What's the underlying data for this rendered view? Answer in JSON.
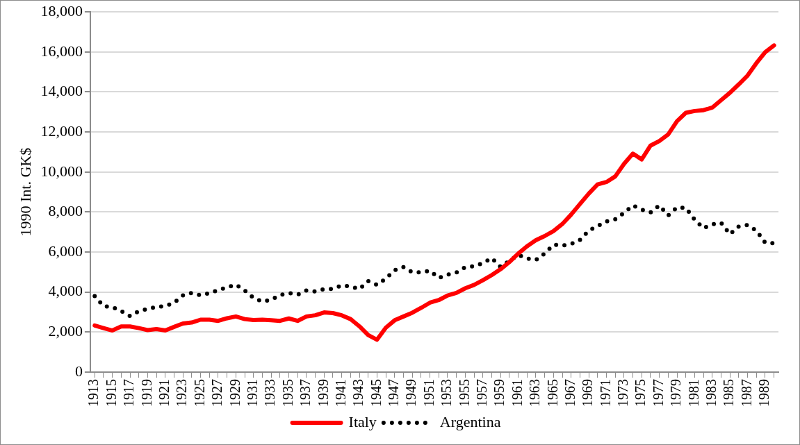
{
  "chart_data": {
    "type": "line",
    "ylabel": "1990 Int. GK$",
    "categories": [
      "1913",
      null,
      "1915",
      null,
      "1917",
      null,
      "1919",
      null,
      "1921",
      null,
      "1923",
      null,
      "1925",
      null,
      "1927",
      null,
      "1929",
      null,
      "1931",
      null,
      "1933",
      null,
      "1935",
      null,
      "1937",
      null,
      "1939",
      null,
      "1941",
      null,
      "1943",
      null,
      "1945",
      null,
      "1947",
      null,
      "1949",
      null,
      "1951",
      null,
      "1953",
      null,
      "1955",
      null,
      "1957",
      null,
      "1959",
      null,
      "1961",
      null,
      "1963",
      null,
      "1965",
      null,
      "1967",
      null,
      "1969",
      null,
      "1971",
      null,
      "1973",
      null,
      "1975",
      null,
      "1977",
      null,
      "1979",
      null,
      "1981",
      null,
      "1983",
      null,
      "1985",
      null,
      "1987",
      null,
      "1989",
      null
    ],
    "series": [
      {
        "name": "Italy",
        "color": "#ff0000",
        "line_style": "solid",
        "values": [
          2330,
          2200,
          2080,
          2280,
          2280,
          2200,
          2100,
          2150,
          2080,
          2260,
          2430,
          2480,
          2620,
          2620,
          2560,
          2690,
          2780,
          2650,
          2600,
          2620,
          2590,
          2560,
          2680,
          2560,
          2780,
          2840,
          2980,
          2950,
          2840,
          2650,
          2290,
          1850,
          1620,
          2220,
          2590,
          2780,
          2970,
          3210,
          3470,
          3600,
          3830,
          3960,
          4190,
          4360,
          4590,
          4850,
          5140,
          5500,
          5920,
          6290,
          6590,
          6800,
          7050,
          7400,
          7870,
          8400,
          8920,
          9380,
          9500,
          9780,
          10410,
          10920,
          10630,
          11320,
          11550,
          11880,
          12540,
          12960,
          13050,
          13090,
          13220,
          13590,
          13960,
          14380,
          14820,
          15440,
          15990,
          16330
        ]
      },
      {
        "name": "Argentina",
        "color": "#000000",
        "line_style": "dotted",
        "values": [
          3800,
          3300,
          3250,
          3050,
          2800,
          3050,
          3150,
          3260,
          3300,
          3470,
          3830,
          3960,
          3840,
          3950,
          4100,
          4240,
          4370,
          4080,
          3710,
          3520,
          3620,
          3850,
          3950,
          3870,
          4080,
          4030,
          4150,
          4160,
          4330,
          4280,
          4150,
          4550,
          4360,
          4670,
          5090,
          5250,
          4990,
          4990,
          5070,
          4710,
          4870,
          4980,
          5240,
          5290,
          5450,
          5700,
          5260,
          5560,
          5860,
          5680,
          5600,
          5930,
          6370,
          6320,
          6400,
          6610,
          7070,
          7300,
          7530,
          7640,
          7960,
          8330,
          8120,
          7980,
          8330,
          7830,
          8230,
          8210,
          7620,
          7190,
          7390,
          7460,
          6890,
          7280,
          7350,
          7070,
          6470,
          6440
        ]
      }
    ],
    "ylim": [
      0,
      18000
    ],
    "yticks": [
      {
        "value": 0,
        "label": "0"
      },
      {
        "value": 2000,
        "label": "2,000"
      },
      {
        "value": 4000,
        "label": "4,000"
      },
      {
        "value": 6000,
        "label": "6,000"
      },
      {
        "value": 8000,
        "label": "8,000"
      },
      {
        "value": 10000,
        "label": "10,000"
      },
      {
        "value": 12000,
        "label": "12,000"
      },
      {
        "value": 14000,
        "label": "14,000"
      },
      {
        "value": 16000,
        "label": "16,000"
      },
      {
        "value": 18000,
        "label": "18,000"
      }
    ],
    "grid": "y",
    "legend": "bottom",
    "marker": "none"
  }
}
